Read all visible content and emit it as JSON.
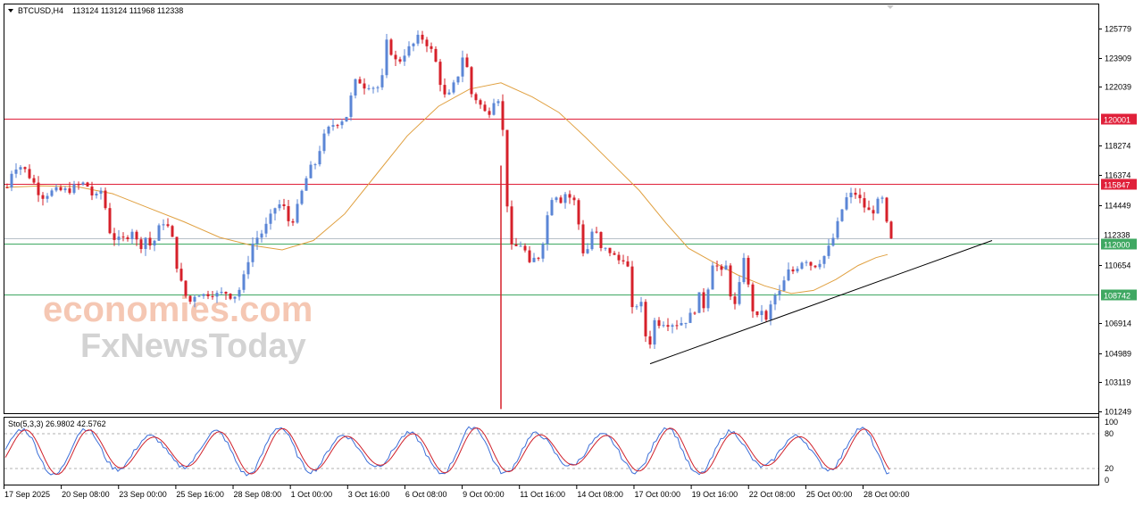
{
  "chart_data": {
    "type": "candlestick",
    "symbol_header": "BTCUSD,H4",
    "ohlc_header": "113124 113124 111968 112338",
    "menu_icon": "triangle-down-icon",
    "price_axis_ticks": [
      125779,
      123909,
      122039,
      118274,
      116374,
      114449,
      110654,
      106914,
      104989,
      103119,
      101249
    ],
    "price_range": [
      101249,
      125779
    ],
    "horizontal_levels": [
      {
        "label": "120001",
        "value": 120001,
        "color": "#e0203a"
      },
      {
        "label": "115847",
        "value": 115847,
        "color": "#e0203a"
      },
      {
        "label": "112000",
        "value": 112000,
        "color": "#3fa862"
      },
      {
        "label": "108742",
        "value": 108742,
        "color": "#3fa862"
      }
    ],
    "bid_line_value": 112338,
    "bid_line_label": "112338",
    "time_labels": [
      "17 Sep 2025",
      "20 Sep 08:00",
      "23 Sep 00:00",
      "25 Sep 16:00",
      "28 Sep 08:00",
      "1 Oct 00:00",
      "3 Oct 16:00",
      "6 Oct 08:00",
      "9 Oct 00:00",
      "11 Oct 16:00",
      "14 Oct 08:00",
      "17 Oct 00:00",
      "19 Oct 16:00",
      "22 Oct 08:00",
      "25 Oct 00:00",
      "28 Oct 00:00"
    ],
    "price_path": [
      [
        0,
        115600
      ],
      [
        5,
        116600
      ],
      [
        12,
        117100
      ],
      [
        20,
        116700
      ],
      [
        28,
        116100
      ],
      [
        38,
        115000
      ],
      [
        48,
        115300
      ],
      [
        58,
        115400
      ],
      [
        68,
        115400
      ],
      [
        78,
        115700
      ],
      [
        88,
        115900
      ],
      [
        98,
        114800
      ],
      [
        105,
        115400
      ],
      [
        110,
        114300
      ],
      [
        116,
        112500
      ],
      [
        124,
        112200
      ],
      [
        132,
        112300
      ],
      [
        140,
        112900
      ],
      [
        148,
        111700
      ],
      [
        156,
        112500
      ],
      [
        162,
        111600
      ],
      [
        168,
        112800
      ],
      [
        176,
        113500
      ],
      [
        184,
        112600
      ],
      [
        190,
        110600
      ],
      [
        197,
        109000
      ],
      [
        204,
        108200
      ],
      [
        212,
        108900
      ],
      [
        220,
        108700
      ],
      [
        228,
        108900
      ],
      [
        236,
        108700
      ],
      [
        244,
        108900
      ],
      [
        252,
        108600
      ],
      [
        258,
        108800
      ],
      [
        264,
        109600
      ],
      [
        270,
        111000
      ],
      [
        276,
        112200
      ],
      [
        284,
        112600
      ],
      [
        292,
        113300
      ],
      [
        300,
        114300
      ],
      [
        308,
        114600
      ],
      [
        316,
        113300
      ],
      [
        322,
        113700
      ],
      [
        330,
        115300
      ],
      [
        338,
        116700
      ],
      [
        346,
        117200
      ],
      [
        352,
        118500
      ],
      [
        358,
        119200
      ],
      [
        366,
        119700
      ],
      [
        374,
        119900
      ],
      [
        380,
        120200
      ],
      [
        386,
        121600
      ],
      [
        392,
        122700
      ],
      [
        398,
        122100
      ],
      [
        406,
        122200
      ],
      [
        414,
        121900
      ],
      [
        420,
        122600
      ],
      [
        426,
        125300
      ],
      [
        432,
        123800
      ],
      [
        438,
        123600
      ],
      [
        446,
        124300
      ],
      [
        454,
        124700
      ],
      [
        462,
        125300
      ],
      [
        468,
        125000
      ],
      [
        474,
        124500
      ],
      [
        480,
        123600
      ],
      [
        486,
        122100
      ],
      [
        492,
        121100
      ],
      [
        498,
        121900
      ],
      [
        504,
        122600
      ],
      [
        510,
        124000
      ],
      [
        516,
        123100
      ],
      [
        520,
        121600
      ],
      [
        528,
        121100
      ],
      [
        534,
        120400
      ],
      [
        540,
        120500
      ],
      [
        546,
        121400
      ],
      [
        552,
        121300
      ],
      [
        558,
        117100
      ],
      [
        562,
        112000
      ],
      [
        566,
        111600
      ],
      [
        572,
        111900
      ],
      [
        578,
        112000
      ],
      [
        584,
        110500
      ],
      [
        590,
        111000
      ],
      [
        596,
        111200
      ],
      [
        602,
        112700
      ],
      [
        608,
        114900
      ],
      [
        614,
        115200
      ],
      [
        620,
        114800
      ],
      [
        626,
        115300
      ],
      [
        632,
        114800
      ],
      [
        638,
        114600
      ],
      [
        642,
        111900
      ],
      [
        648,
        111100
      ],
      [
        654,
        112800
      ],
      [
        660,
        112600
      ],
      [
        666,
        111400
      ],
      [
        672,
        111700
      ],
      [
        678,
        111300
      ],
      [
        684,
        110900
      ],
      [
        690,
        111100
      ],
      [
        696,
        110300
      ],
      [
        700,
        107700
      ],
      [
        706,
        108200
      ],
      [
        712,
        108000
      ],
      [
        718,
        104200
      ],
      [
        722,
        107200
      ],
      [
        728,
        106900
      ],
      [
        734,
        107000
      ],
      [
        742,
        106900
      ],
      [
        750,
        106900
      ],
      [
        758,
        107000
      ],
      [
        764,
        107300
      ],
      [
        770,
        107800
      ],
      [
        776,
        108800
      ],
      [
        782,
        107600
      ],
      [
        788,
        110900
      ],
      [
        794,
        110600
      ],
      [
        800,
        110100
      ],
      [
        806,
        110600
      ],
      [
        812,
        107900
      ],
      [
        818,
        108100
      ],
      [
        824,
        111700
      ],
      [
        828,
        109900
      ],
      [
        834,
        107900
      ],
      [
        840,
        107200
      ],
      [
        846,
        107900
      ],
      [
        850,
        107000
      ],
      [
        856,
        108200
      ],
      [
        862,
        108900
      ],
      [
        868,
        108800
      ],
      [
        872,
        110300
      ],
      [
        878,
        110100
      ],
      [
        884,
        110500
      ],
      [
        890,
        110900
      ],
      [
        896,
        111000
      ],
      [
        902,
        110500
      ],
      [
        908,
        110800
      ],
      [
        914,
        111100
      ],
      [
        920,
        111700
      ],
      [
        926,
        112500
      ],
      [
        932,
        113600
      ],
      [
        938,
        114800
      ],
      [
        944,
        115100
      ],
      [
        950,
        115200
      ],
      [
        956,
        114700
      ],
      [
        962,
        114200
      ],
      [
        968,
        113900
      ],
      [
        974,
        114600
      ],
      [
        980,
        114800
      ],
      [
        985,
        113200
      ],
      [
        990,
        112338
      ]
    ],
    "moving_average": {
      "color": "#e0a040",
      "values": [
        [
          0,
          115600
        ],
        [
          40,
          115700
        ],
        [
          80,
          115650
        ],
        [
          120,
          115200
        ],
        [
          160,
          114300
        ],
        [
          200,
          113400
        ],
        [
          240,
          112400
        ],
        [
          275,
          111900
        ],
        [
          310,
          111600
        ],
        [
          345,
          112200
        ],
        [
          380,
          113900
        ],
        [
          415,
          116400
        ],
        [
          450,
          118900
        ],
        [
          485,
          120800
        ],
        [
          520,
          121900
        ],
        [
          555,
          122300
        ],
        [
          590,
          121400
        ],
        [
          620,
          120400
        ],
        [
          650,
          118800
        ],
        [
          680,
          117100
        ],
        [
          710,
          115400
        ],
        [
          740,
          113300
        ],
        [
          765,
          111700
        ],
        [
          790,
          110900
        ],
        [
          820,
          110000
        ],
        [
          850,
          109300
        ],
        [
          880,
          108800
        ],
        [
          905,
          109000
        ],
        [
          930,
          109700
        ],
        [
          955,
          110600
        ],
        [
          975,
          111100
        ],
        [
          988,
          111300
        ]
      ]
    },
    "trendline": [
      [
        722,
        104300
      ],
      [
        1105,
        112200
      ]
    ],
    "watermark_primary": "economies.com",
    "watermark_secondary": "FxNewsToday",
    "stochastic": {
      "header": "Sto(5,3,3) 26.9802 42.5762",
      "levels": [
        20,
        80
      ],
      "range": [
        0,
        100
      ],
      "axis_ticks": [
        100,
        80,
        20,
        0
      ],
      "main_color": "#3c6fd8",
      "signal_color": "#d0202a"
    }
  }
}
